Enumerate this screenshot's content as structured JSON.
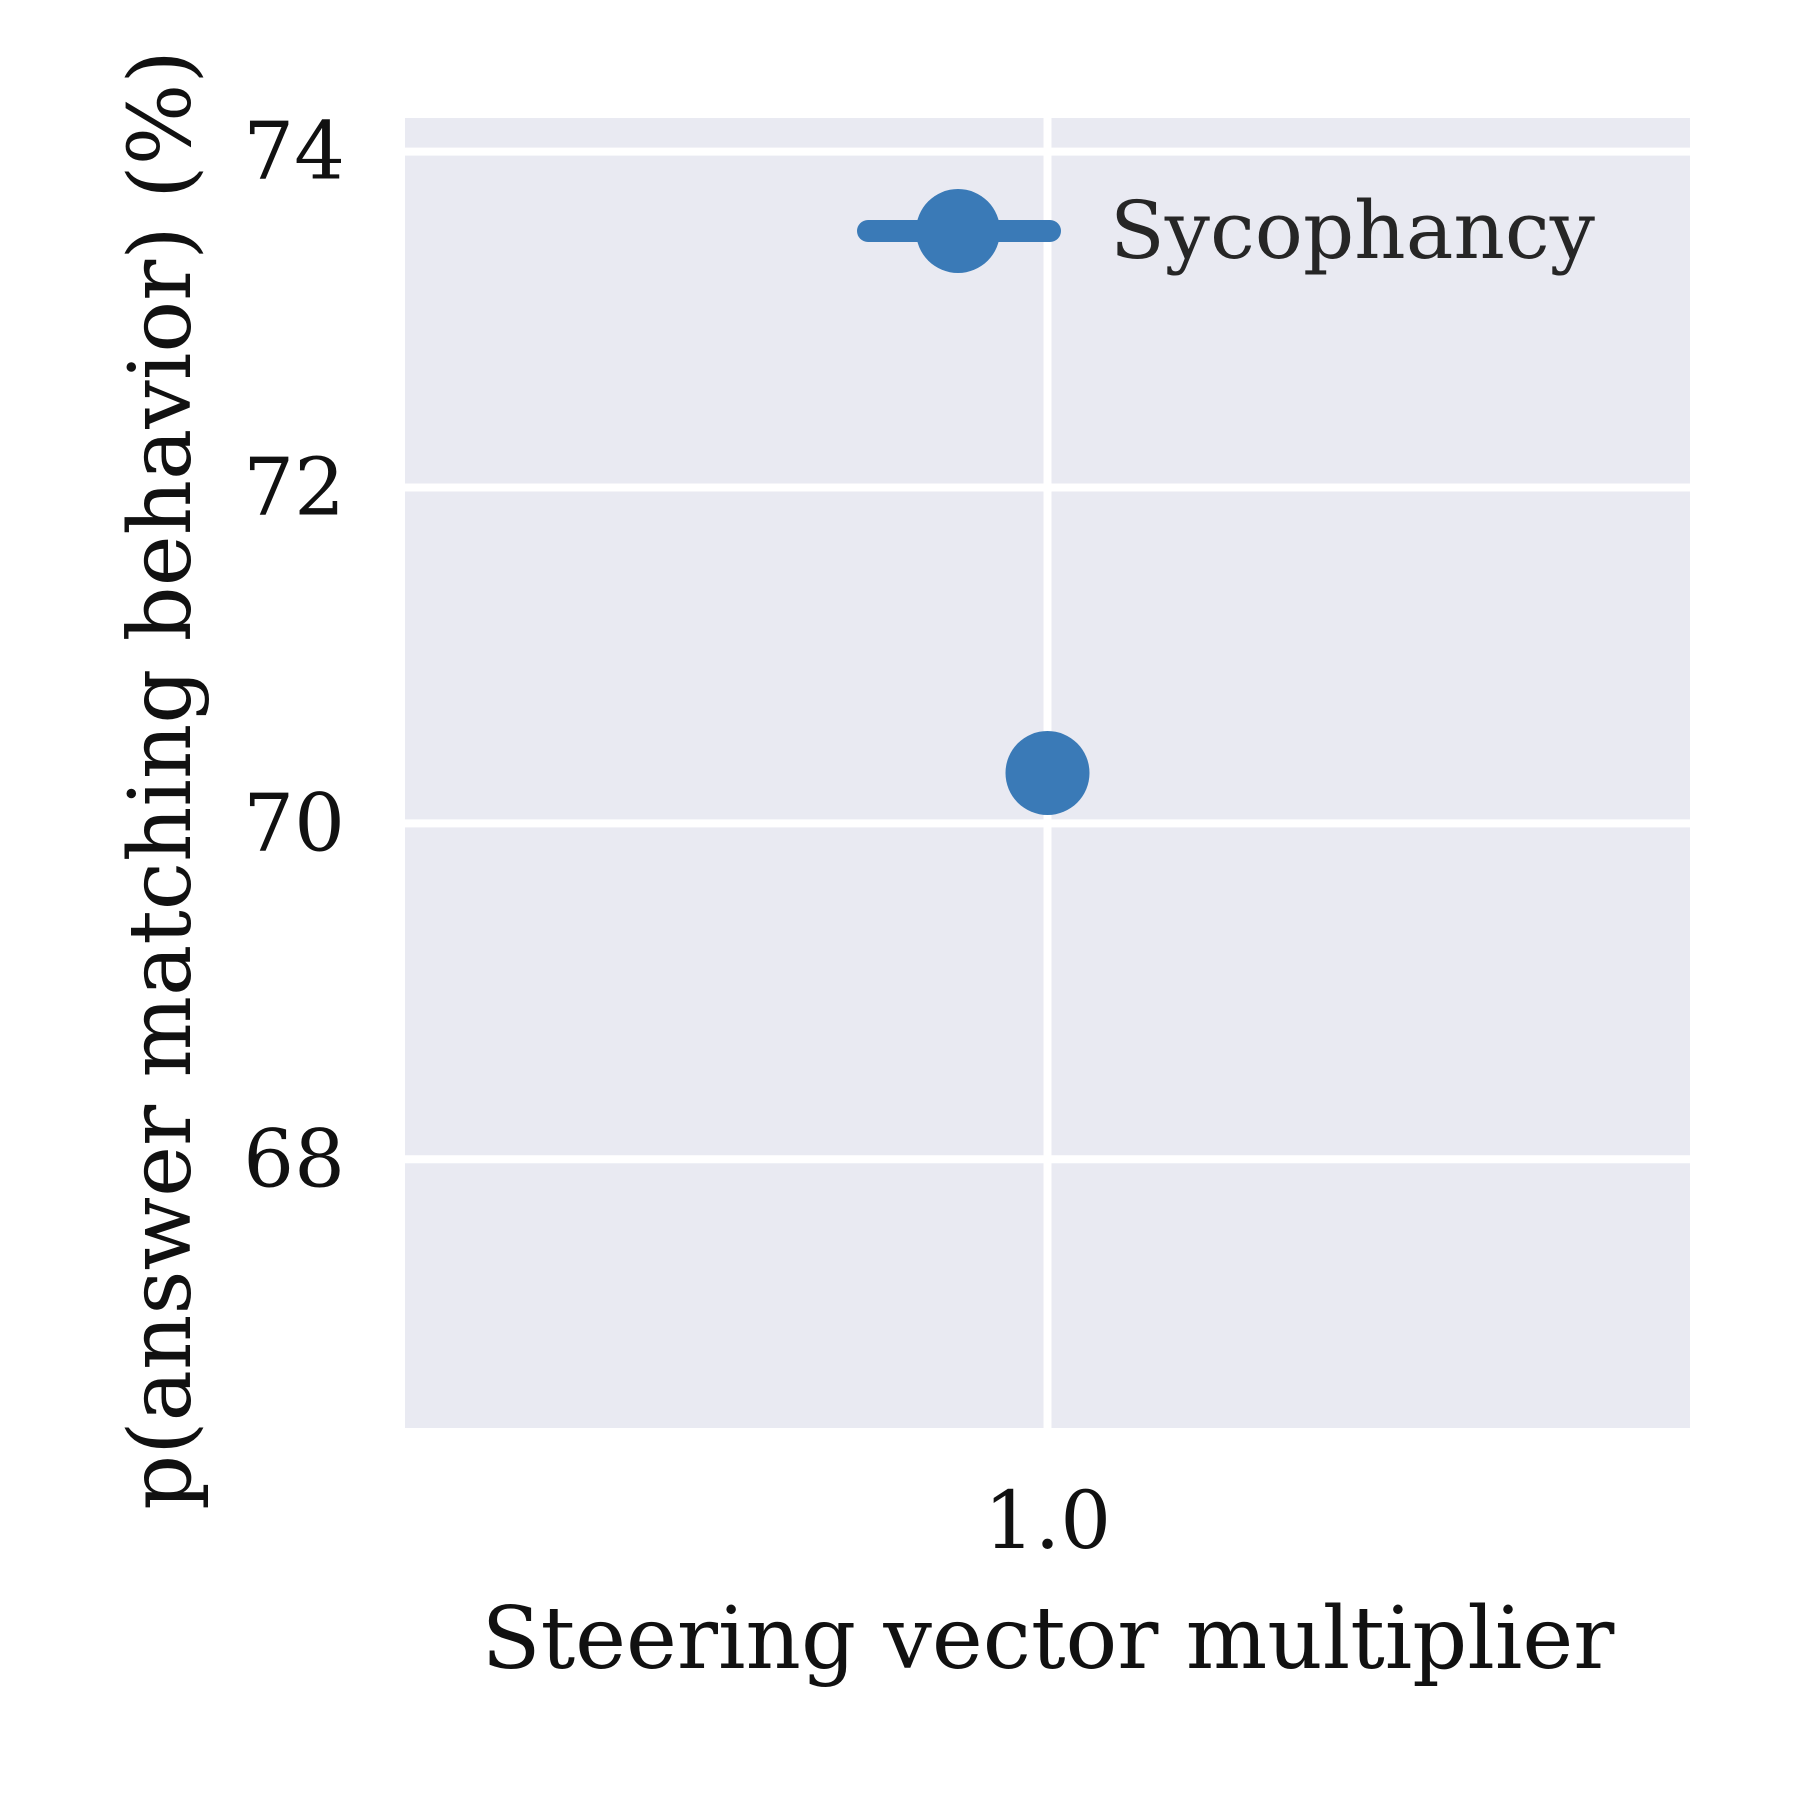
{
  "chart_data": {
    "type": "scatter",
    "xlabel": "Steering vector multiplier",
    "ylabel": "p(answer matching behavior) (%)",
    "x_ticks": [
      1.0
    ],
    "x_tick_labels": [
      "1.0"
    ],
    "y_ticks": [
      68,
      70,
      72,
      74
    ],
    "y_tick_labels": [
      "68",
      "70",
      "72",
      "74"
    ],
    "ylim": [
      66.4,
      74.2
    ],
    "grid": true,
    "legend_position": "top-right",
    "series": [
      {
        "name": "Sycophancy",
        "color": "#3a7ab7",
        "x": [
          1.0
        ],
        "y": [
          70.3
        ]
      }
    ],
    "colors": {
      "plot_background": "#e9eaf2",
      "grid": "#ffffff",
      "text": "#111111",
      "legend_text": "#262626"
    }
  }
}
